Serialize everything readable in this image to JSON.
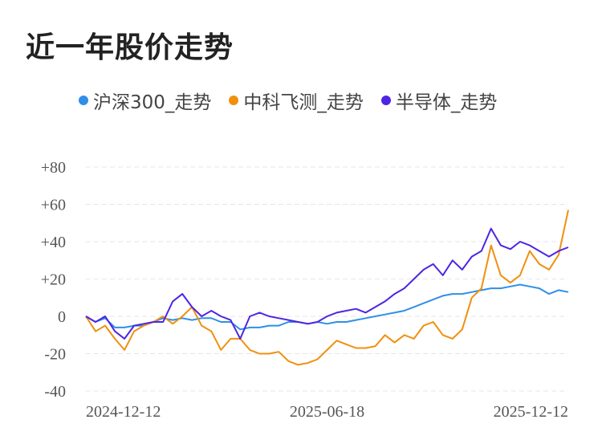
{
  "title": "近一年股价走势",
  "chart_data": {
    "type": "line",
    "title": "近一年股价走势",
    "ylim": [
      -40,
      80
    ],
    "y_ticks": [
      "+80",
      "+60",
      "+40",
      "+20",
      "0",
      "-20",
      "-40"
    ],
    "y_tick_values": [
      80,
      60,
      40,
      20,
      0,
      -20,
      -40
    ],
    "x_labels": [
      "2024-12-12",
      "2025-06-18",
      "2025-12-12"
    ],
    "x_label_positions": [
      0,
      0.5,
      1
    ],
    "series": [
      {
        "name": "沪深300_走势",
        "color": "#2f8fe8",
        "x": [
          0,
          0.02,
          0.04,
          0.06,
          0.08,
          0.1,
          0.12,
          0.14,
          0.16,
          0.18,
          0.2,
          0.22,
          0.24,
          0.26,
          0.28,
          0.3,
          0.32,
          0.34,
          0.36,
          0.38,
          0.4,
          0.42,
          0.44,
          0.46,
          0.48,
          0.5,
          0.52,
          0.54,
          0.56,
          0.58,
          0.6,
          0.62,
          0.64,
          0.66,
          0.68,
          0.7,
          0.72,
          0.74,
          0.76,
          0.78,
          0.8,
          0.82,
          0.84,
          0.86,
          0.88,
          0.9,
          0.92,
          0.94,
          0.96,
          0.98,
          1
        ],
        "values": [
          0,
          -3,
          -1,
          -6,
          -6,
          -5,
          -5,
          -3,
          -1,
          -2,
          -1,
          -2,
          -1,
          -1,
          -3,
          -3,
          -7,
          -6,
          -6,
          -5,
          -5,
          -3,
          -3,
          -4,
          -3,
          -4,
          -3,
          -3,
          -2,
          -1,
          0,
          1,
          2,
          3,
          5,
          7,
          9,
          11,
          12,
          12,
          13,
          14,
          15,
          15,
          16,
          17,
          16,
          15,
          12,
          14,
          13
        ]
      },
      {
        "name": "中科飞测_走势",
        "color": "#f0900f",
        "x": [
          0,
          0.02,
          0.04,
          0.06,
          0.08,
          0.1,
          0.12,
          0.14,
          0.16,
          0.18,
          0.2,
          0.22,
          0.24,
          0.26,
          0.28,
          0.3,
          0.32,
          0.34,
          0.36,
          0.38,
          0.4,
          0.42,
          0.44,
          0.46,
          0.48,
          0.5,
          0.52,
          0.54,
          0.56,
          0.58,
          0.6,
          0.62,
          0.64,
          0.66,
          0.68,
          0.7,
          0.72,
          0.74,
          0.76,
          0.78,
          0.8,
          0.82,
          0.84,
          0.86,
          0.88,
          0.9,
          0.92,
          0.94,
          0.96,
          0.98,
          1
        ],
        "values": [
          0,
          -8,
          -5,
          -12,
          -18,
          -8,
          -5,
          -3,
          0,
          -4,
          0,
          5,
          -5,
          -8,
          -18,
          -12,
          -12,
          -18,
          -20,
          -20,
          -19,
          -24,
          -26,
          -25,
          -23,
          -18,
          -13,
          -15,
          -17,
          -17,
          -16,
          -10,
          -14,
          -10,
          -12,
          -5,
          -3,
          -10,
          -12,
          -7,
          10,
          15,
          38,
          22,
          18,
          22,
          35,
          28,
          25,
          33,
          57
        ]
      },
      {
        "name": "半导体_走势",
        "color": "#4f25e2",
        "x": [
          0,
          0.02,
          0.04,
          0.06,
          0.08,
          0.1,
          0.12,
          0.14,
          0.16,
          0.18,
          0.2,
          0.22,
          0.24,
          0.26,
          0.28,
          0.3,
          0.32,
          0.34,
          0.36,
          0.38,
          0.4,
          0.42,
          0.44,
          0.46,
          0.48,
          0.5,
          0.52,
          0.54,
          0.56,
          0.58,
          0.6,
          0.62,
          0.64,
          0.66,
          0.68,
          0.7,
          0.72,
          0.74,
          0.76,
          0.78,
          0.8,
          0.82,
          0.84,
          0.86,
          0.88,
          0.9,
          0.92,
          0.94,
          0.96,
          0.98,
          1
        ],
        "values": [
          0,
          -3,
          0,
          -8,
          -12,
          -5,
          -4,
          -3,
          -3,
          8,
          12,
          5,
          0,
          3,
          0,
          -2,
          -12,
          0,
          2,
          0,
          -1,
          -2,
          -3,
          -4,
          -3,
          0,
          2,
          3,
          4,
          2,
          5,
          8,
          12,
          15,
          20,
          25,
          28,
          22,
          30,
          25,
          32,
          35,
          47,
          38,
          36,
          40,
          38,
          35,
          32,
          35,
          37
        ]
      }
    ]
  }
}
